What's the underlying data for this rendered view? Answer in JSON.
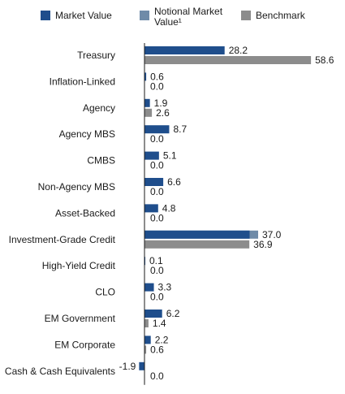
{
  "chart_data": {
    "type": "bar",
    "orientation": "horizontal",
    "xlim": [
      -2,
      60
    ],
    "grid": false,
    "legend_position": "top",
    "categories": [
      "Treasury",
      "Inflation-Linked",
      "Agency",
      "Agency MBS",
      "CMBS",
      "Non-Agency MBS",
      "Asset-Backed",
      "Investment-Grade Credit",
      "High-Yield Credit",
      "CLO",
      "EM Government",
      "EM Corporate",
      "Cash & Cash Equivalents"
    ],
    "series": [
      {
        "name": "Market Value",
        "color": "#1f4e8c",
        "values": [
          28.2,
          0.6,
          1.9,
          8.7,
          5.1,
          6.6,
          4.8,
          37.0,
          0.1,
          3.3,
          6.2,
          2.2,
          -1.9
        ]
      },
      {
        "name": "Notional Market Value¹",
        "color": "#6f8ba8",
        "values": [
          28.2,
          0.6,
          1.9,
          8.7,
          5.1,
          6.6,
          4.8,
          40.0,
          0.1,
          3.3,
          6.2,
          2.2,
          -1.9
        ]
      },
      {
        "name": "Benchmark",
        "color": "#8c8c8c",
        "values": [
          58.6,
          0.0,
          2.6,
          0.0,
          0.0,
          0.0,
          0.0,
          36.9,
          0.0,
          0.0,
          1.4,
          0.6,
          0.0
        ]
      }
    ],
    "data_labels": {
      "market": [
        "28.2",
        "0.6",
        "1.9",
        "8.7",
        "5.1",
        "6.6",
        "4.8",
        "37.0",
        "0.1",
        "3.3",
        "6.2",
        "2.2",
        "-1.9"
      ],
      "benchmark": [
        "58.6",
        "0.0",
        "2.6",
        "0.0",
        "0.0",
        "0.0",
        "0.0",
        "36.9",
        "0.0",
        "0.0",
        "1.4",
        "0.6",
        "0.0"
      ]
    }
  }
}
